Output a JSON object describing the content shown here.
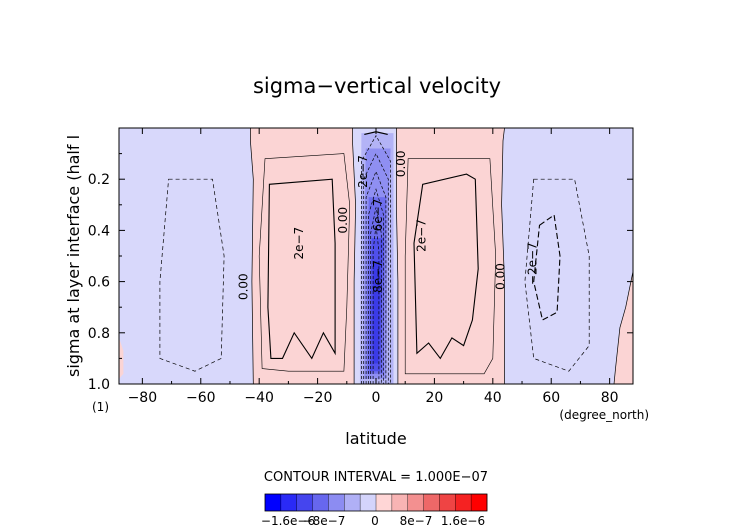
{
  "chart_data": {
    "type": "heatmap",
    "title": "sigma−vertical velocity",
    "xlabel": "latitude",
    "xunits": "(degree_north)",
    "ylabel": "sigma at layer interface (half l",
    "yunits": "(1)",
    "xlim": [
      -88,
      88
    ],
    "ylim": [
      1.0,
      0.0
    ],
    "y_inverted": true,
    "xticks": [
      "−80",
      "−60",
      "−40",
      "−20",
      "0",
      "20",
      "40",
      "60",
      "80"
    ],
    "xtick_values": [
      -80,
      -60,
      -40,
      -20,
      0,
      20,
      40,
      60,
      80
    ],
    "yticks": [
      "0.2",
      "0.4",
      "0.6",
      "0.8",
      "1.0"
    ],
    "ytick_values": [
      0.2,
      0.4,
      0.6,
      0.8,
      1.0
    ],
    "contour_interval_label": "CONTOUR INTERVAL = 1.000E−07",
    "contour_interval": 1e-07,
    "regions": [
      {
        "name": "southern-high-latitude-negative",
        "lat": [
          -88,
          -43
        ],
        "sign": "negative"
      },
      {
        "name": "southern-subtropical-positive",
        "lat": [
          -43,
          -8
        ],
        "sign": "positive"
      },
      {
        "name": "equatorial-negative-core",
        "lat": [
          -8,
          7
        ],
        "sign": "negative",
        "min_value": -1e-06
      },
      {
        "name": "northern-subtropical-positive",
        "lat": [
          7,
          44
        ],
        "sign": "positive"
      },
      {
        "name": "northern-high-latitude-negative",
        "lat": [
          44,
          82
        ],
        "sign": "negative"
      },
      {
        "name": "north-pole-positive",
        "lat": [
          82,
          88
        ],
        "sign": "positive"
      }
    ],
    "contour_labels": [
      {
        "text": "0.00",
        "lat": -44,
        "sigma": 0.62
      },
      {
        "text": "2e−7",
        "lat": -25,
        "sigma": 0.45
      },
      {
        "text": "0.00",
        "lat": -10,
        "sigma": 0.36
      },
      {
        "text": "2e−7",
        "lat": -3,
        "sigma": 0.17
      },
      {
        "text": "6e−7",
        "lat": 2,
        "sigma": 0.34
      },
      {
        "text": "8e−7",
        "lat": 2,
        "sigma": 0.58
      },
      {
        "text": "0.00",
        "lat": 10,
        "sigma": 0.14
      },
      {
        "text": "2e−7",
        "lat": 17,
        "sigma": 0.42
      },
      {
        "text": "0.00",
        "lat": 44,
        "sigma": 0.58
      },
      {
        "text": "−2e−7",
        "lat": 55,
        "sigma": 0.53
      }
    ],
    "colorbar": {
      "colors": [
        "#0000ff",
        "#2a2af6",
        "#4545ee",
        "#6767ee",
        "#8c8cf2",
        "#b0b0f6",
        "#d4d4fb",
        "#ffd6d6",
        "#f8b4b4",
        "#f39090",
        "#ee6868",
        "#ef4444",
        "#f52222",
        "#ff0000"
      ],
      "tick_labels": [
        "−1.6e−6",
        "−8e−7",
        "0",
        "8e−7",
        "1.6e−6"
      ],
      "tick_values": [
        -1.6e-06,
        -8e-07,
        0,
        8e-07,
        1.6e-06
      ],
      "range": [
        -1.6e-06,
        1.6e-06
      ]
    }
  }
}
